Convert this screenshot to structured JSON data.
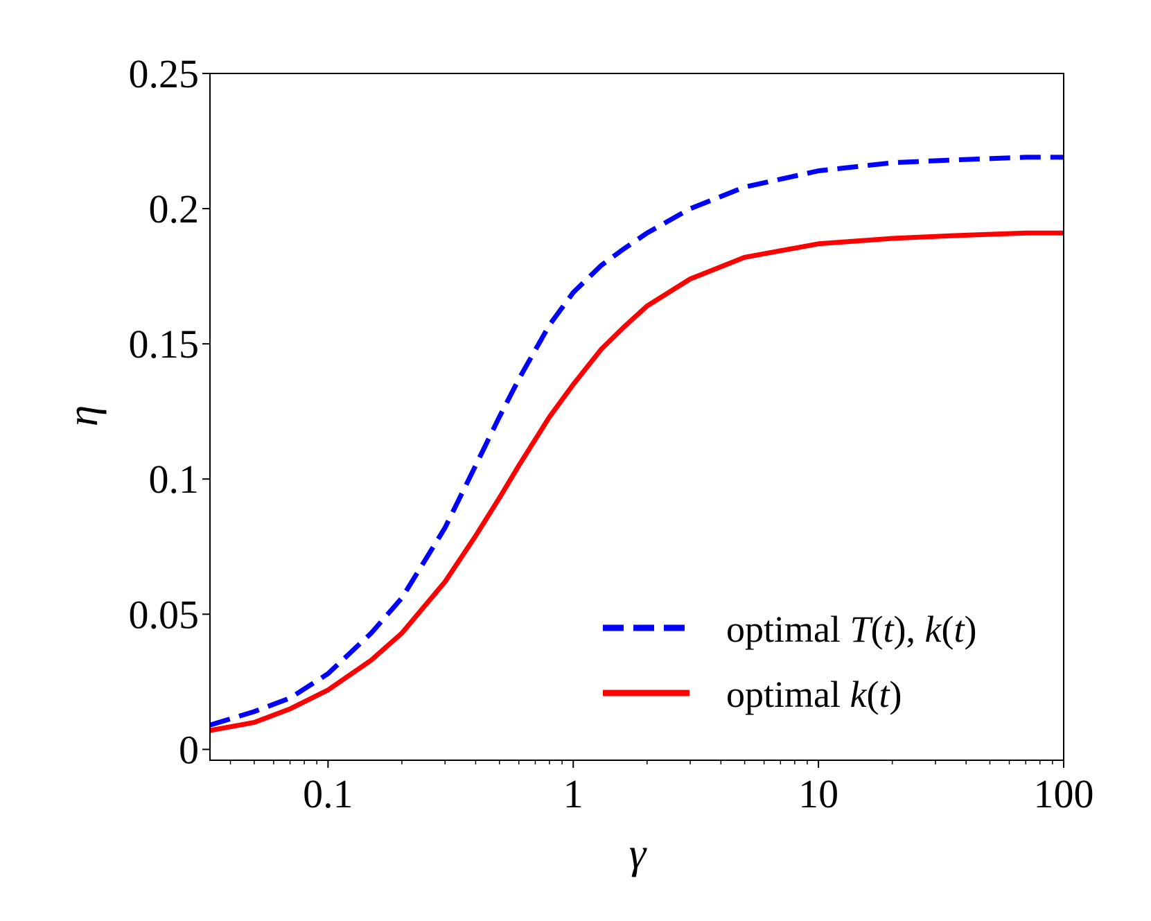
{
  "chart_data": {
    "type": "line",
    "xscale": "log",
    "xlabel": "γ",
    "ylabel": "η",
    "xlim": [
      0.033,
      100
    ],
    "ylim": [
      -0.004,
      0.25
    ],
    "xticks": [
      0.1,
      1,
      10,
      100
    ],
    "xtick_labels": [
      "0.1",
      "1",
      "10",
      "100"
    ],
    "yticks": [
      0,
      0.05,
      0.1,
      0.15,
      0.2,
      0.25
    ],
    "ytick_labels": [
      "0",
      "0.05",
      "0.1",
      "0.15",
      "0.2",
      "0.25"
    ],
    "grid": false,
    "legend_position": "lower-right",
    "series": [
      {
        "name": "optimal T(t), k(t)",
        "legend": {
          "prefix": "optimal ",
          "parts": [
            "T",
            "(",
            "t",
            "), ",
            "k",
            "(",
            "t",
            ")"
          ]
        },
        "color": "#0000ff",
        "style": "dashed",
        "x": [
          0.033,
          0.05,
          0.07,
          0.1,
          0.15,
          0.2,
          0.3,
          0.4,
          0.5,
          0.6,
          0.8,
          1.0,
          1.3,
          1.6,
          2.0,
          3.0,
          5.0,
          10,
          20,
          35,
          70,
          100
        ],
        "y": [
          0.009,
          0.014,
          0.019,
          0.028,
          0.043,
          0.056,
          0.082,
          0.105,
          0.123,
          0.137,
          0.157,
          0.169,
          0.179,
          0.185,
          0.191,
          0.2,
          0.208,
          0.214,
          0.217,
          0.218,
          0.219,
          0.219
        ]
      },
      {
        "name": "optimal k(t)",
        "legend": {
          "prefix": "optimal ",
          "parts": [
            "k",
            "(",
            "t",
            ")"
          ]
        },
        "color": "#ff0000",
        "style": "solid",
        "x": [
          0.033,
          0.05,
          0.07,
          0.1,
          0.15,
          0.2,
          0.3,
          0.4,
          0.5,
          0.6,
          0.8,
          1.0,
          1.3,
          1.6,
          2.0,
          3.0,
          5.0,
          10,
          20,
          35,
          70,
          100
        ],
        "y": [
          0.007,
          0.01,
          0.015,
          0.022,
          0.033,
          0.043,
          0.062,
          0.079,
          0.093,
          0.105,
          0.123,
          0.135,
          0.148,
          0.156,
          0.164,
          0.174,
          0.182,
          0.187,
          0.189,
          0.19,
          0.191,
          0.191
        ]
      }
    ]
  }
}
